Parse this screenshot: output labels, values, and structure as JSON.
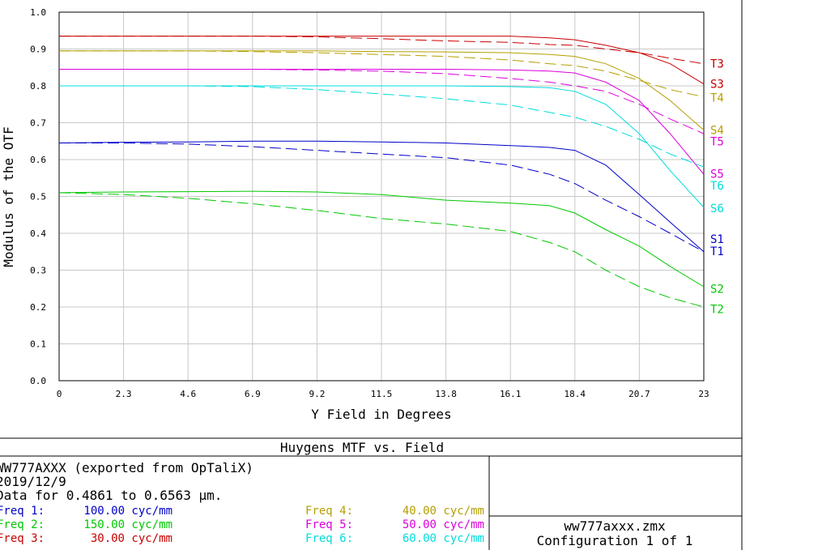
{
  "chart_data": {
    "type": "line",
    "xlabel": "Y Field in Degrees",
    "ylabel": "Modulus of the OTF",
    "xlim": [
      0,
      23
    ],
    "ylim": [
      0,
      1
    ],
    "x_ticks": [
      "0",
      "2.3",
      "4.6",
      "6.9",
      "9.2",
      "11.5",
      "13.8",
      "16.1",
      "18.4",
      "20.7",
      "23"
    ],
    "y_ticks": [
      "0.0",
      "0.1",
      "0.2",
      "0.3",
      "0.4",
      "0.5",
      "0.6",
      "0.7",
      "0.8",
      "0.9",
      "1.0"
    ],
    "x": [
      0,
      2.3,
      4.6,
      6.9,
      9.2,
      11.5,
      13.8,
      16.1,
      17.5,
      18.4,
      19.5,
      20.7,
      21.8,
      23
    ],
    "series": [
      {
        "name": "S1",
        "freq": 1,
        "dash": false,
        "color": "#0000c8",
        "values": [
          0.645,
          0.647,
          0.648,
          0.65,
          0.65,
          0.648,
          0.645,
          0.638,
          0.633,
          0.625,
          0.585,
          0.505,
          0.43,
          0.35
        ]
      },
      {
        "name": "T1",
        "freq": 1,
        "dash": true,
        "color": "#0000c8",
        "values": [
          0.645,
          0.645,
          0.642,
          0.635,
          0.625,
          0.615,
          0.605,
          0.585,
          0.56,
          0.535,
          0.49,
          0.445,
          0.4,
          0.35
        ]
      },
      {
        "name": "S2",
        "freq": 2,
        "dash": false,
        "color": "#00c800",
        "values": [
          0.51,
          0.512,
          0.513,
          0.514,
          0.512,
          0.505,
          0.49,
          0.482,
          0.475,
          0.455,
          0.41,
          0.365,
          0.31,
          0.255
        ]
      },
      {
        "name": "T2",
        "freq": 2,
        "dash": true,
        "color": "#00c800",
        "values": [
          0.51,
          0.505,
          0.495,
          0.48,
          0.462,
          0.44,
          0.425,
          0.405,
          0.375,
          0.35,
          0.3,
          0.255,
          0.225,
          0.2
        ]
      },
      {
        "name": "S3",
        "freq": 3,
        "dash": false,
        "color": "#c80000",
        "values": [
          0.935,
          0.935,
          0.935,
          0.935,
          0.935,
          0.935,
          0.935,
          0.935,
          0.93,
          0.925,
          0.91,
          0.89,
          0.86,
          0.805
        ]
      },
      {
        "name": "T3",
        "freq": 3,
        "dash": true,
        "color": "#c80000",
        "values": [
          0.935,
          0.935,
          0.935,
          0.935,
          0.933,
          0.928,
          0.922,
          0.918,
          0.912,
          0.91,
          0.9,
          0.89,
          0.875,
          0.86
        ]
      },
      {
        "name": "S4",
        "freq": 4,
        "dash": false,
        "color": "#b4a000",
        "values": [
          0.895,
          0.895,
          0.895,
          0.895,
          0.895,
          0.893,
          0.892,
          0.89,
          0.885,
          0.88,
          0.86,
          0.82,
          0.76,
          0.68
        ]
      },
      {
        "name": "T4",
        "freq": 4,
        "dash": true,
        "color": "#b4a000",
        "values": [
          0.895,
          0.895,
          0.895,
          0.893,
          0.89,
          0.885,
          0.88,
          0.87,
          0.86,
          0.855,
          0.84,
          0.815,
          0.79,
          0.77
        ]
      },
      {
        "name": "S5",
        "freq": 5,
        "dash": false,
        "color": "#dc00dc",
        "values": [
          0.845,
          0.845,
          0.845,
          0.845,
          0.845,
          0.845,
          0.845,
          0.843,
          0.84,
          0.835,
          0.81,
          0.76,
          0.67,
          0.56
        ]
      },
      {
        "name": "T5",
        "freq": 5,
        "dash": true,
        "color": "#dc00dc",
        "values": [
          0.845,
          0.845,
          0.845,
          0.845,
          0.843,
          0.84,
          0.833,
          0.82,
          0.81,
          0.8,
          0.785,
          0.75,
          0.71,
          0.67
        ]
      },
      {
        "name": "S6",
        "freq": 6,
        "dash": false,
        "color": "#00dcdc",
        "values": [
          0.8,
          0.8,
          0.8,
          0.8,
          0.8,
          0.8,
          0.8,
          0.798,
          0.795,
          0.785,
          0.75,
          0.67,
          0.57,
          0.47
        ]
      },
      {
        "name": "T6",
        "freq": 6,
        "dash": true,
        "color": "#00dcdc",
        "values": [
          0.8,
          0.8,
          0.8,
          0.798,
          0.79,
          0.778,
          0.765,
          0.748,
          0.728,
          0.715,
          0.69,
          0.655,
          0.615,
          0.58
        ]
      }
    ],
    "end_labels": [
      {
        "text": "T3",
        "color": "#c80000",
        "value": 0.86
      },
      {
        "text": "S3",
        "color": "#c80000",
        "value": 0.805
      },
      {
        "text": "T4",
        "color": "#b4a000",
        "value": 0.768
      },
      {
        "text": "S4",
        "color": "#b4a000",
        "value": 0.68
      },
      {
        "text": "T5",
        "color": "#dc00dc",
        "value": 0.65
      },
      {
        "text": "S5",
        "color": "#dc00dc",
        "value": 0.562
      },
      {
        "text": "T6",
        "color": "#00dcdc",
        "value": 0.53
      },
      {
        "text": "S6",
        "color": "#00dcdc",
        "value": 0.468
      },
      {
        "text": "S1",
        "color": "#0000c8",
        "value": 0.385
      },
      {
        "text": "T1",
        "color": "#0000c8",
        "value": 0.352
      },
      {
        "text": "S2",
        "color": "#00c800",
        "value": 0.25
      },
      {
        "text": "T2",
        "color": "#00c800",
        "value": 0.195
      }
    ]
  },
  "info": {
    "title": "Huygens MTF vs. Field",
    "lines": [
      "WW777AXXX (exported from OpTaliX)",
      "2019/12/9",
      "Data for 0.4861 to 0.6563 µm."
    ],
    "file": "ww777axxx.zmx",
    "config": "Configuration 1 of 1"
  },
  "freqs": {
    "left": [
      {
        "label": "Freq 1:",
        "value": "100.00 cyc/mm",
        "color": "#0000c8"
      },
      {
        "label": "Freq 2:",
        "value": "150.00 cyc/mm",
        "color": "#00c800"
      },
      {
        "label": "Freq 3:",
        "value": "30.00 cyc/mm",
        "color": "#c80000"
      }
    ],
    "right": [
      {
        "label": "Freq 4:",
        "value": "40.00 cyc/mm",
        "color": "#b4a000"
      },
      {
        "label": "Freq 5:",
        "value": "50.00 cyc/mm",
        "color": "#dc00dc"
      },
      {
        "label": "Freq 6:",
        "value": "60.00 cyc/mm",
        "color": "#00dcdc"
      }
    ]
  }
}
